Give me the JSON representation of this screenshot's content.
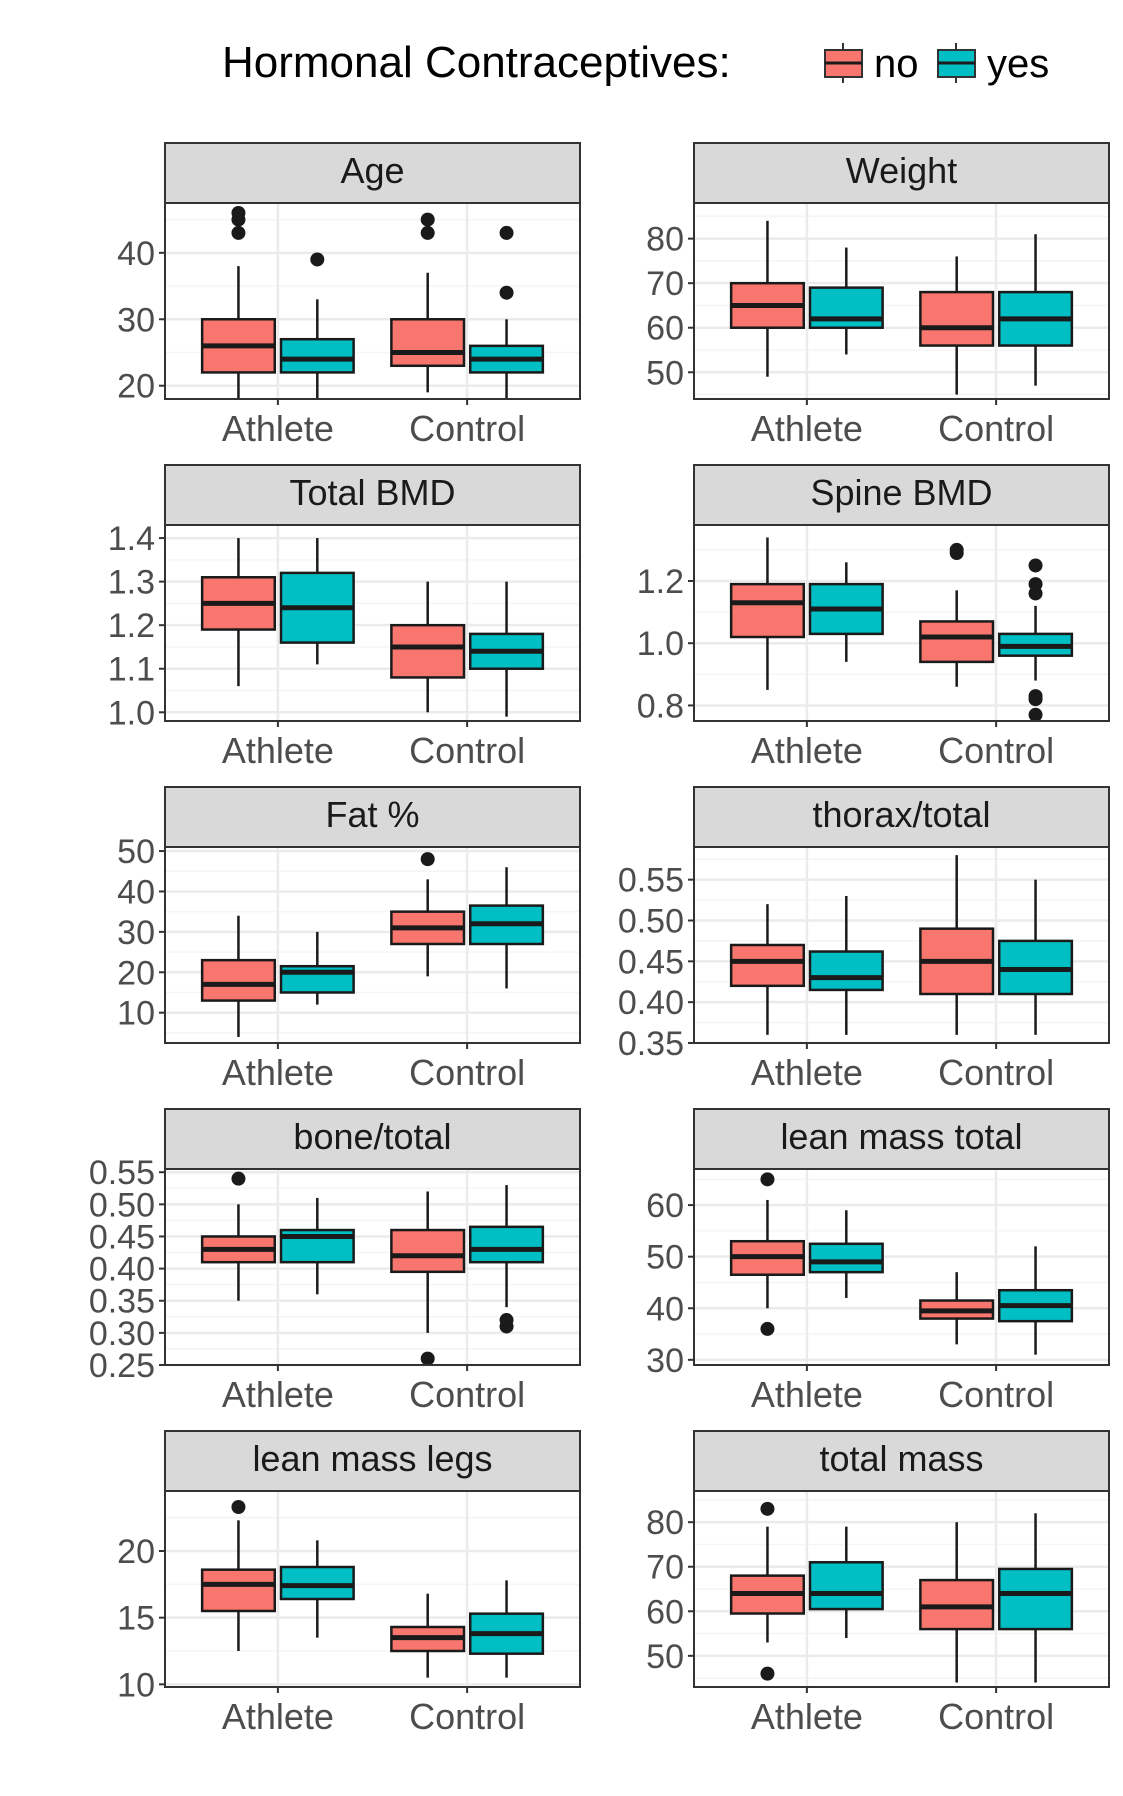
{
  "legend": {
    "title": "Hormonal Contraceptives:",
    "items": [
      {
        "label": "no",
        "color": "#F8766D"
      },
      {
        "label": "yes",
        "color": "#00BFC4"
      }
    ]
  },
  "colors": {
    "no": "#F8766D",
    "yes": "#00BFC4",
    "strip": "#D9D9D9",
    "panel_border": "#333333",
    "grid_major": "#EBEBEB",
    "grid_minor": "#F5F5F5",
    "text": "#333333",
    "box_line": "#1A1A1A"
  },
  "chart_data": [
    {
      "type": "box",
      "title": "Age",
      "categories": [
        "Athlete",
        "Control"
      ],
      "ylim": [
        18,
        47.5
      ],
      "yticks": [
        20,
        30,
        40
      ],
      "series": [
        {
          "name": "no",
          "boxes": [
            {
              "min": 18,
              "q1": 22,
              "median": 26,
              "q3": 30,
              "max": 38,
              "outliers": [
                43,
                45,
                46
              ]
            },
            {
              "min": 19,
              "q1": 23,
              "median": 25,
              "q3": 30,
              "max": 37,
              "outliers": [
                43,
                45
              ]
            }
          ]
        },
        {
          "name": "yes",
          "boxes": [
            {
              "min": 18,
              "q1": 22,
              "median": 24,
              "q3": 27,
              "max": 33,
              "outliers": [
                39
              ]
            },
            {
              "min": 18,
              "q1": 22,
              "median": 24,
              "q3": 26,
              "max": 30,
              "outliers": [
                34,
                43
              ]
            }
          ]
        }
      ]
    },
    {
      "type": "box",
      "title": "Weight",
      "categories": [
        "Athlete",
        "Control"
      ],
      "ylim": [
        44,
        88
      ],
      "yticks": [
        50,
        60,
        70,
        80
      ],
      "series": [
        {
          "name": "no",
          "boxes": [
            {
              "min": 49,
              "q1": 60,
              "median": 65,
              "q3": 70,
              "max": 84,
              "outliers": []
            },
            {
              "min": 45,
              "q1": 56,
              "median": 60,
              "q3": 68,
              "max": 76,
              "outliers": []
            }
          ]
        },
        {
          "name": "yes",
          "boxes": [
            {
              "min": 54,
              "q1": 60,
              "median": 62,
              "q3": 69,
              "max": 78,
              "outliers": []
            },
            {
              "min": 47,
              "q1": 56,
              "median": 62,
              "q3": 68,
              "max": 81,
              "outliers": []
            }
          ]
        }
      ]
    },
    {
      "type": "box",
      "title": "Total BMD",
      "categories": [
        "Athlete",
        "Control"
      ],
      "ylim": [
        0.98,
        1.43
      ],
      "yticks": [
        1.0,
        1.1,
        1.2,
        1.3,
        1.4
      ],
      "series": [
        {
          "name": "no",
          "boxes": [
            {
              "min": 1.06,
              "q1": 1.19,
              "median": 1.25,
              "q3": 1.31,
              "max": 1.4,
              "outliers": []
            },
            {
              "min": 1.0,
              "q1": 1.08,
              "median": 1.15,
              "q3": 1.2,
              "max": 1.3,
              "outliers": []
            }
          ]
        },
        {
          "name": "yes",
          "boxes": [
            {
              "min": 1.11,
              "q1": 1.16,
              "median": 1.24,
              "q3": 1.32,
              "max": 1.4,
              "outliers": []
            },
            {
              "min": 0.99,
              "q1": 1.1,
              "median": 1.14,
              "q3": 1.18,
              "max": 1.3,
              "outliers": []
            }
          ]
        }
      ]
    },
    {
      "type": "box",
      "title": "Spine BMD",
      "categories": [
        "Athlete",
        "Control"
      ],
      "ylim": [
        0.75,
        1.38
      ],
      "yticks": [
        0.8,
        1.0,
        1.2
      ],
      "series": [
        {
          "name": "no",
          "boxes": [
            {
              "min": 0.85,
              "q1": 1.02,
              "median": 1.13,
              "q3": 1.19,
              "max": 1.34,
              "outliers": []
            },
            {
              "min": 0.86,
              "q1": 0.94,
              "median": 1.02,
              "q3": 1.07,
              "max": 1.17,
              "outliers": [
                1.29,
                1.3
              ]
            }
          ]
        },
        {
          "name": "yes",
          "boxes": [
            {
              "min": 0.94,
              "q1": 1.03,
              "median": 1.11,
              "q3": 1.19,
              "max": 1.26,
              "outliers": []
            },
            {
              "min": 0.88,
              "q1": 0.96,
              "median": 0.99,
              "q3": 1.03,
              "max": 1.12,
              "outliers": [
                0.77,
                0.82,
                0.83,
                1.16,
                1.19,
                1.25
              ]
            }
          ]
        }
      ]
    },
    {
      "type": "box",
      "title": "Fat %",
      "categories": [
        "Athlete",
        "Control"
      ],
      "ylim": [
        2.5,
        51
      ],
      "yticks": [
        10,
        20,
        30,
        40,
        50
      ],
      "series": [
        {
          "name": "no",
          "boxes": [
            {
              "min": 4,
              "q1": 13,
              "median": 17,
              "q3": 23,
              "max": 34,
              "outliers": []
            },
            {
              "min": 19,
              "q1": 27,
              "median": 31,
              "q3": 35,
              "max": 43,
              "outliers": [
                48
              ]
            }
          ]
        },
        {
          "name": "yes",
          "boxes": [
            {
              "min": 12,
              "q1": 15,
              "median": 20,
              "q3": 21.5,
              "max": 30,
              "outliers": []
            },
            {
              "min": 16,
              "q1": 27,
              "median": 32,
              "q3": 36.5,
              "max": 46,
              "outliers": []
            }
          ]
        }
      ]
    },
    {
      "type": "box",
      "title": "thorax/total",
      "categories": [
        "Athlete",
        "Control"
      ],
      "ylim": [
        0.35,
        0.59
      ],
      "yticks": [
        0.35,
        0.4,
        0.45,
        0.5,
        0.55
      ],
      "series": [
        {
          "name": "no",
          "boxes": [
            {
              "min": 0.36,
              "q1": 0.42,
              "median": 0.45,
              "q3": 0.47,
              "max": 0.52,
              "outliers": []
            },
            {
              "min": 0.36,
              "q1": 0.41,
              "median": 0.45,
              "q3": 0.49,
              "max": 0.58,
              "outliers": []
            }
          ]
        },
        {
          "name": "yes",
          "boxes": [
            {
              "min": 0.36,
              "q1": 0.415,
              "median": 0.43,
              "q3": 0.462,
              "max": 0.53,
              "outliers": []
            },
            {
              "min": 0.36,
              "q1": 0.41,
              "median": 0.44,
              "q3": 0.475,
              "max": 0.55,
              "outliers": []
            }
          ]
        }
      ]
    },
    {
      "type": "box",
      "title": "bone/total",
      "categories": [
        "Athlete",
        "Control"
      ],
      "ylim": [
        0.25,
        0.555
      ],
      "yticks": [
        0.25,
        0.3,
        0.35,
        0.4,
        0.45,
        0.5,
        0.55
      ],
      "series": [
        {
          "name": "no",
          "boxes": [
            {
              "min": 0.35,
              "q1": 0.41,
              "median": 0.43,
              "q3": 0.45,
              "max": 0.5,
              "outliers": [
                0.54
              ]
            },
            {
              "min": 0.3,
              "q1": 0.395,
              "median": 0.42,
              "q3": 0.46,
              "max": 0.52,
              "outliers": [
                0.26
              ]
            }
          ]
        },
        {
          "name": "yes",
          "boxes": [
            {
              "min": 0.36,
              "q1": 0.41,
              "median": 0.45,
              "q3": 0.46,
              "max": 0.51,
              "outliers": []
            },
            {
              "min": 0.34,
              "q1": 0.41,
              "median": 0.43,
              "q3": 0.465,
              "max": 0.53,
              "outliers": [
                0.31,
                0.32
              ]
            }
          ]
        }
      ]
    },
    {
      "type": "box",
      "title": "lean mass total",
      "categories": [
        "Athlete",
        "Control"
      ],
      "ylim": [
        29,
        67
      ],
      "yticks": [
        30,
        40,
        50,
        60
      ],
      "series": [
        {
          "name": "no",
          "boxes": [
            {
              "min": 40,
              "q1": 46.5,
              "median": 50,
              "q3": 53,
              "max": 61,
              "outliers": [
                36,
                65
              ]
            },
            {
              "min": 33,
              "q1": 38,
              "median": 39.5,
              "q3": 41.5,
              "max": 47,
              "outliers": []
            }
          ]
        },
        {
          "name": "yes",
          "boxes": [
            {
              "min": 42,
              "q1": 47,
              "median": 49,
              "q3": 52.5,
              "max": 59,
              "outliers": []
            },
            {
              "min": 31,
              "q1": 37.5,
              "median": 40.5,
              "q3": 43.5,
              "max": 52,
              "outliers": []
            }
          ]
        }
      ]
    },
    {
      "type": "box",
      "title": "lean mass legs",
      "categories": [
        "Athlete",
        "Control"
      ],
      "ylim": [
        9.8,
        24.5
      ],
      "yticks": [
        10,
        15,
        20
      ],
      "series": [
        {
          "name": "no",
          "boxes": [
            {
              "min": 12.5,
              "q1": 15.5,
              "median": 17.5,
              "q3": 18.6,
              "max": 22.3,
              "outliers": [
                23.3
              ]
            },
            {
              "min": 10.5,
              "q1": 12.5,
              "median": 13.5,
              "q3": 14.3,
              "max": 16.8,
              "outliers": []
            }
          ]
        },
        {
          "name": "yes",
          "boxes": [
            {
              "min": 13.5,
              "q1": 16.4,
              "median": 17.4,
              "q3": 18.8,
              "max": 20.8,
              "outliers": []
            },
            {
              "min": 10.5,
              "q1": 12.3,
              "median": 13.8,
              "q3": 15.3,
              "max": 17.8,
              "outliers": []
            }
          ]
        }
      ]
    },
    {
      "type": "box",
      "title": "total mass",
      "categories": [
        "Athlete",
        "Control"
      ],
      "ylim": [
        43,
        87
      ],
      "yticks": [
        50,
        60,
        70,
        80
      ],
      "series": [
        {
          "name": "no",
          "boxes": [
            {
              "min": 53,
              "q1": 59.5,
              "median": 64,
              "q3": 68,
              "max": 79,
              "outliers": [
                46,
                83
              ]
            },
            {
              "min": 44,
              "q1": 56,
              "median": 61,
              "q3": 67,
              "max": 80,
              "outliers": []
            }
          ]
        },
        {
          "name": "yes",
          "boxes": [
            {
              "min": 54,
              "q1": 60.5,
              "median": 64,
              "q3": 71,
              "max": 79,
              "outliers": []
            },
            {
              "min": 44,
              "q1": 56,
              "median": 64,
              "q3": 69.5,
              "max": 82,
              "outliers": []
            }
          ]
        }
      ]
    }
  ]
}
